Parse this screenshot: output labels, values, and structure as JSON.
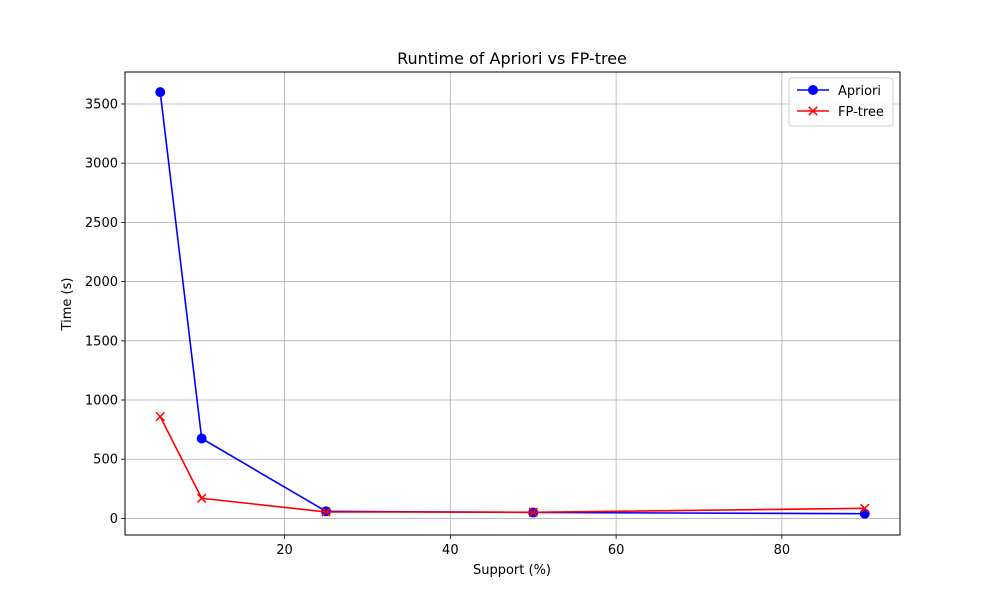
{
  "chart_data": {
    "type": "line",
    "title": "Runtime of Apriori vs FP-tree",
    "xlabel": "Support (%)",
    "ylabel": "Time (s)",
    "xlim": [
      0.75,
      94.25
    ],
    "ylim": [
      -140,
      3770
    ],
    "xticks": [
      20,
      40,
      60,
      80
    ],
    "yticks": [
      0,
      500,
      1000,
      1500,
      2000,
      2500,
      3000,
      3500
    ],
    "grid": true,
    "legend_position": "upper-right",
    "x": [
      5,
      10,
      25,
      50,
      90
    ],
    "series": [
      {
        "name": "Apriori",
        "color": "#0000ff",
        "marker": "circle",
        "values": [
          3600,
          675,
          60,
          50,
          40
        ]
      },
      {
        "name": "FP-tree",
        "color": "#ff0000",
        "marker": "x",
        "values": [
          860,
          170,
          55,
          52,
          85
        ]
      }
    ]
  }
}
